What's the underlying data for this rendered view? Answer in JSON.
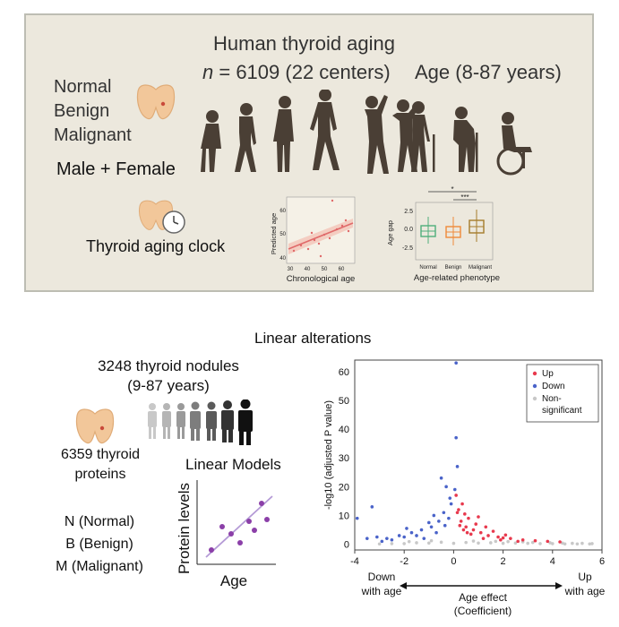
{
  "top": {
    "title": "Human thyroid aging",
    "n_prefix": "n",
    "n_value": " = 6109  (22 centers)",
    "age_range": "Age (8-87 years)",
    "categories": [
      "Normal",
      "Benign",
      "Malignant"
    ],
    "sex": "Male + Female",
    "clock_label": "Thyroid aging clock",
    "scatter": {
      "ylabel": "Predicted age",
      "xlabel": "Chronological age",
      "xticks": [
        "30",
        "40",
        "50",
        "60"
      ],
      "yticks": [
        "40",
        "50",
        "60"
      ]
    },
    "boxplot": {
      "ylabel": "Age gap",
      "xlabel": "Age-related phenotype",
      "yticks": [
        "2.5",
        "0.0",
        "-2.5"
      ],
      "groups": [
        "Normal",
        "Benign",
        "Malignant"
      ],
      "sig_labels": [
        "*",
        "***"
      ]
    }
  },
  "bottom": {
    "section_title": "Linear alterations",
    "nodules_line1": "3248 thyroid nodules",
    "nodules_line2": "(9-87 years)",
    "proteins_line1": "6359 thyroid",
    "proteins_line2": "proteins",
    "model_title": "Linear Models",
    "model_ylabel": "Protein levels",
    "model_xlabel": "Age",
    "legend_items": [
      "N (Normal)",
      "B (Benign)",
      "M (Malignant)"
    ]
  },
  "chart_data": {
    "type": "scatter",
    "title": "",
    "xlabel": "Age effect (Coefficient)",
    "ylabel": "-log10 (adjusted P value)",
    "xlim": [
      -4,
      6
    ],
    "ylim": [
      -2,
      64
    ],
    "xticks": [
      -4,
      -2,
      0,
      2,
      4,
      6
    ],
    "yticks": [
      0,
      10,
      20,
      30,
      40,
      50,
      60
    ],
    "left_annotation": [
      "Down",
      "with age"
    ],
    "right_annotation": [
      "Up",
      "with age"
    ],
    "axis_caption": [
      "Age effect",
      "(Coefficient)"
    ],
    "legend": {
      "placement": "top-right",
      "entries": [
        "Up",
        "Down",
        "Non-",
        "significant"
      ]
    },
    "colors": {
      "up": "#e8394d",
      "down": "#4a63c9",
      "ns": "#c8c8c8"
    },
    "series": [
      {
        "name": "Up",
        "points": [
          [
            0.1,
            17
          ],
          [
            0.2,
            12
          ],
          [
            0.3,
            8
          ],
          [
            0.5,
            6
          ],
          [
            0.8,
            5
          ],
          [
            1.1,
            4
          ],
          [
            0.6,
            9
          ],
          [
            1.4,
            3
          ],
          [
            1.8,
            2.5
          ],
          [
            2.3,
            2
          ],
          [
            2.8,
            1.5
          ],
          [
            3.3,
            1.2
          ],
          [
            0.35,
            14
          ],
          [
            0.15,
            11
          ],
          [
            0.9,
            7
          ],
          [
            1.6,
            4.5
          ],
          [
            2.1,
            3.2
          ],
          [
            0.4,
            5
          ],
          [
            0.7,
            3.5
          ],
          [
            1.2,
            2
          ],
          [
            1.9,
            1.5
          ],
          [
            2.6,
            1
          ],
          [
            0.25,
            6.5
          ],
          [
            0.55,
            4
          ],
          [
            3.8,
            1
          ],
          [
            4.3,
            0.8
          ],
          [
            1.0,
            9.5
          ],
          [
            0.45,
            10.5
          ],
          [
            1.3,
            6
          ],
          [
            2.0,
            2.2
          ]
        ]
      },
      {
        "name": "Down",
        "points": [
          [
            0.1,
            63
          ],
          [
            0.1,
            37
          ],
          [
            0.15,
            27
          ],
          [
            -0.5,
            23
          ],
          [
            -0.3,
            20
          ],
          [
            -0.1,
            14
          ],
          [
            -0.6,
            8
          ],
          [
            -0.9,
            6
          ],
          [
            -1.3,
            5
          ],
          [
            -1.7,
            4
          ],
          [
            -2.2,
            3
          ],
          [
            -2.7,
            2
          ],
          [
            -3.1,
            2.5
          ],
          [
            -3.5,
            2
          ],
          [
            -3.9,
            9
          ],
          [
            -3.3,
            13
          ],
          [
            -0.4,
            11
          ],
          [
            -0.2,
            9
          ],
          [
            -1.0,
            7.5
          ],
          [
            -1.5,
            3
          ],
          [
            -2.0,
            2.5
          ],
          [
            -0.7,
            4
          ],
          [
            -1.2,
            2
          ],
          [
            -2.5,
            1.5
          ],
          [
            -0.15,
            16
          ],
          [
            -0.35,
            6.5
          ],
          [
            -0.8,
            10
          ],
          [
            -1.9,
            5.5
          ],
          [
            -2.9,
            1
          ],
          [
            0.05,
            19
          ]
        ]
      },
      {
        "name": "Non-significant",
        "points": [
          [
            -2,
            0.2
          ],
          [
            -1.5,
            0.5
          ],
          [
            -1,
            0.4
          ],
          [
            -0.5,
            0.7
          ],
          [
            0,
            0.3
          ],
          [
            0.5,
            0.6
          ],
          [
            1,
            0.4
          ],
          [
            1.5,
            0.5
          ],
          [
            2,
            0.3
          ],
          [
            2.5,
            0.4
          ],
          [
            3,
            0.3
          ],
          [
            3.5,
            0.2
          ],
          [
            4,
            0.2
          ],
          [
            4.5,
            0.1
          ],
          [
            5,
            0.1
          ],
          [
            5.5,
            0.1
          ],
          [
            -2.5,
            0.2
          ],
          [
            -3,
            0.1
          ],
          [
            2.8,
            0.8
          ],
          [
            3.9,
            0.5
          ],
          [
            4.8,
            0.3
          ],
          [
            5.6,
            0.2
          ],
          [
            -1.8,
            0.9
          ],
          [
            1.7,
            1.0
          ],
          [
            0.8,
            1.1
          ],
          [
            -0.9,
            1.2
          ],
          [
            3.2,
            0.6
          ],
          [
            4.4,
            0.4
          ],
          [
            5.2,
            0.3
          ],
          [
            2.2,
            0.9
          ]
        ]
      }
    ]
  },
  "colors": {
    "panel_bg": "#ece8dd",
    "panel_border": "#bdbdb3",
    "thyroid": "#f2c79a",
    "silhouette": "#4a3f35",
    "scatter_red": "#e06a6a",
    "box_green": "#4fae7b",
    "box_orange": "#ef8a3a",
    "box_brown": "#a67c2c",
    "purple": "#8b3fa8"
  }
}
